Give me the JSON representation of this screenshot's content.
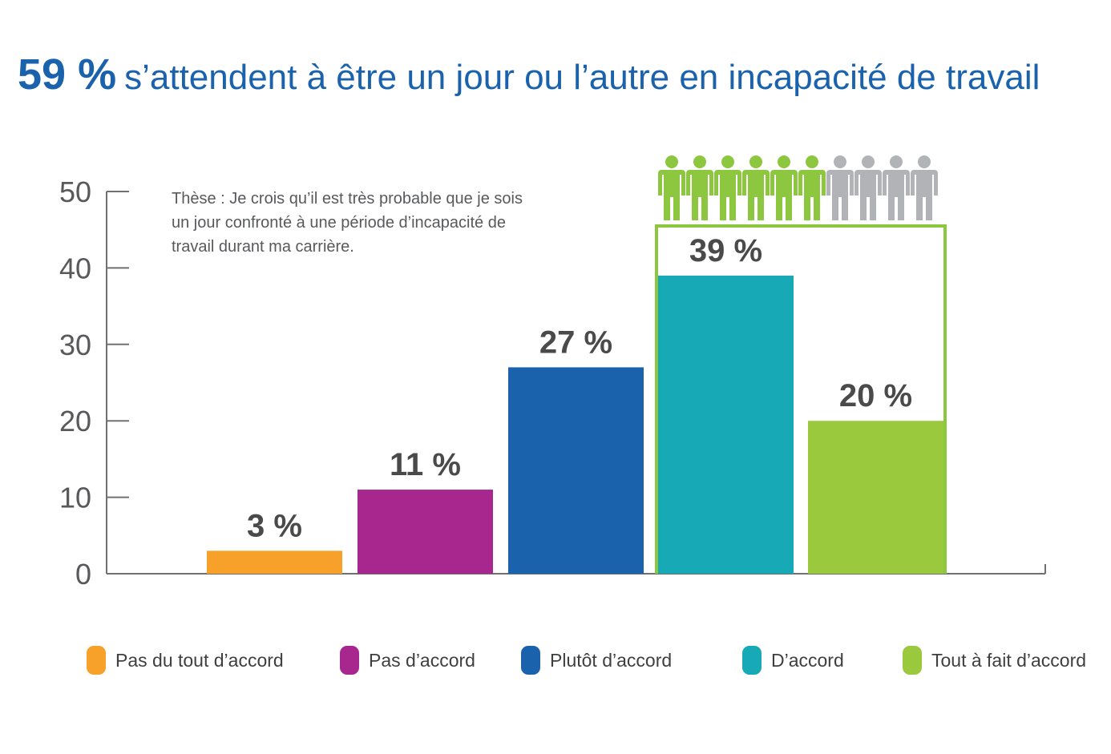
{
  "title": {
    "highlight": "59 %",
    "text": "s’attendent à être un jour ou l’autre en incapacité de travail"
  },
  "annotation": {
    "text": "Thèse : Je crois qu’il est très probable que je sois un jour confronté à une période d’incapacité de travail durant ma carrière."
  },
  "colors": {
    "title": "#1b62ad",
    "axis": "#707070",
    "group_frame": "#8dc63f",
    "person_highlight": "#8dc63f",
    "person_muted": "#b1b3b6"
  },
  "pictogram": {
    "highlighted": 6,
    "total": 10
  },
  "chart_data": {
    "type": "bar",
    "categories": [
      "Pas du tout d’accord",
      "Pas d’accord",
      "Plutôt d’accord",
      "D’accord",
      "Tout à fait d’accord"
    ],
    "values": [
      3,
      11,
      27,
      39,
      20
    ],
    "data_labels": [
      "3 %",
      "11 %",
      "27 %",
      "39 %",
      "20 %"
    ],
    "colors": [
      "#f7a12a",
      "#a7278f",
      "#1b62ad",
      "#17a9b5",
      "#9bc93d"
    ],
    "ylim": [
      0,
      50
    ],
    "yticks": [
      0,
      10,
      20,
      30,
      40,
      50
    ],
    "ytick_labels": [
      "0",
      "10",
      "20",
      "30",
      "40",
      "50"
    ],
    "legend_position": "bottom",
    "grid": false
  }
}
